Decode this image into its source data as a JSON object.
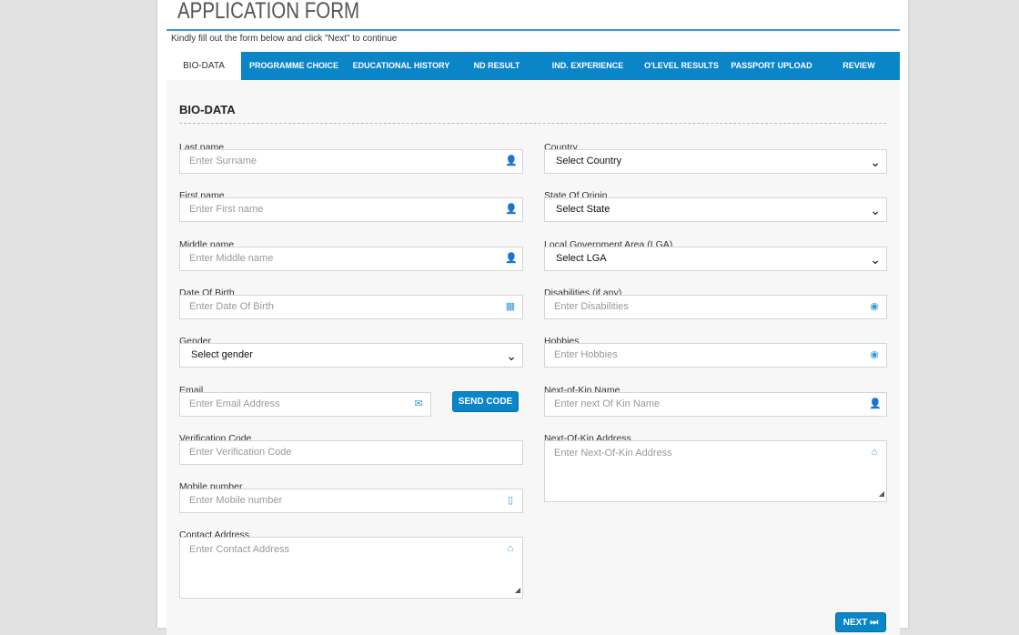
{
  "header": {
    "title": "APPLICATION FORM",
    "subtitle": "Kindly fill out the form below and click \"Next\" to continue"
  },
  "tabs": [
    {
      "label": "BIO-DATA",
      "active": true
    },
    {
      "label": "PROGRAMME CHOICE"
    },
    {
      "label": "EDUCATIONAL HISTORY"
    },
    {
      "label": "ND RESULT"
    },
    {
      "label": "IND. EXPERIENCE"
    },
    {
      "label": "O'LEVEL RESULTS"
    },
    {
      "label": "PASSPORT UPLOAD"
    },
    {
      "label": "REVIEW"
    }
  ],
  "section": {
    "heading": "BIO-DATA"
  },
  "left_fields": [
    {
      "label": "Last name",
      "placeholder": "Enter Surname",
      "type": "text",
      "icon": "user-icon"
    },
    {
      "label": "First name",
      "placeholder": "Enter First name",
      "type": "text",
      "icon": "user-icon"
    },
    {
      "label": "Middle name",
      "placeholder": "Enter Middle name",
      "type": "text",
      "icon": "user-icon"
    },
    {
      "label": "Date Of Birth",
      "placeholder": "Enter Date Of Birth",
      "type": "text",
      "icon": "calendar-icon"
    },
    {
      "label": "Gender",
      "value": "Select gender",
      "type": "select"
    },
    {
      "label": "Email",
      "placeholder": "Enter Email Address",
      "type": "text",
      "icon": "envelope-icon",
      "narrow": true
    },
    {
      "label": "Verification Code",
      "placeholder": "Enter Verification Code",
      "type": "text"
    },
    {
      "label": "Mobile number",
      "placeholder": "Enter Mobile number",
      "type": "text",
      "icon": "mobile-icon"
    },
    {
      "label": "Contact Address",
      "placeholder": "Enter Contact Address",
      "type": "textarea",
      "icon": "home-icon"
    }
  ],
  "right_fields": [
    {
      "label": "Country",
      "value": "Select Country",
      "type": "select"
    },
    {
      "label": "State Of Origin",
      "value": "Select State",
      "type": "select"
    },
    {
      "label": "Local Government Area (LGA)",
      "value": "Select LGA",
      "type": "select"
    },
    {
      "label": "Disabilities (if any)",
      "placeholder": "Enter Disabilities",
      "type": "text",
      "icon": "target-icon"
    },
    {
      "label": "Hobbies",
      "placeholder": "Enter Hobbies",
      "type": "text",
      "icon": "target-icon"
    },
    {
      "label": "Next-of-Kin Name",
      "placeholder": "Enter next Of Kin Name",
      "type": "text",
      "icon": "user-icon"
    },
    {
      "label": "Next-Of-Kin Address",
      "placeholder": "Enter Next-Of-Kin Address",
      "type": "textarea",
      "icon": "home-icon"
    }
  ],
  "buttons": {
    "send_code": "SEND CODE",
    "next": "NEXT ⏭"
  },
  "colors": {
    "accent": "#0a85c8",
    "icon": "#3a9ad6"
  }
}
